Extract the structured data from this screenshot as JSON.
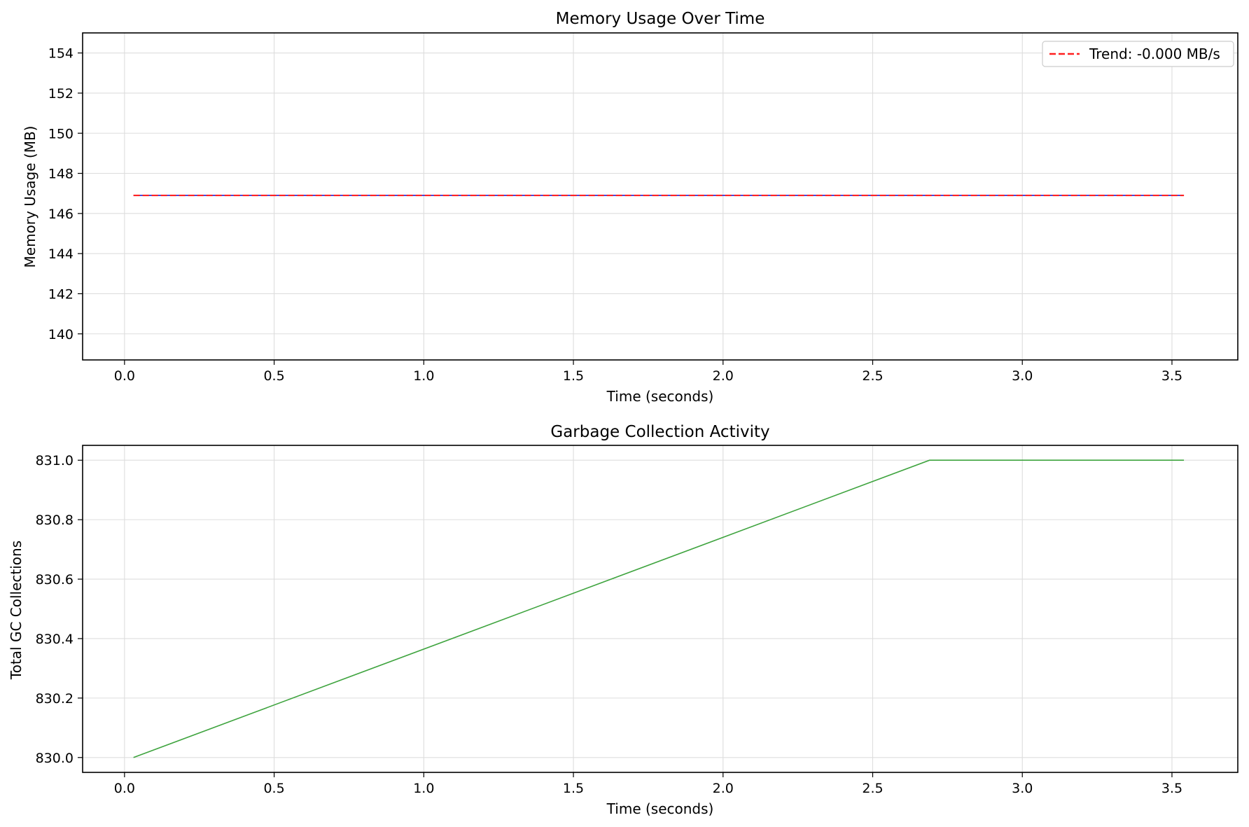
{
  "chart_data": [
    {
      "type": "line",
      "title": "Memory Usage Over Time",
      "xlabel": "Time (seconds)",
      "ylabel": "Memory Usage (MB)",
      "xlim": [
        -0.14,
        3.72
      ],
      "ylim": [
        138.7,
        155.0
      ],
      "xticks": [
        0.0,
        0.5,
        1.0,
        1.5,
        2.0,
        2.5,
        3.0,
        3.5
      ],
      "xtick_labels": [
        "0.0",
        "0.5",
        "1.0",
        "1.5",
        "2.0",
        "2.5",
        "3.0",
        "3.5"
      ],
      "yticks": [
        140,
        142,
        144,
        146,
        148,
        150,
        152,
        154
      ],
      "ytick_labels": [
        "140",
        "142",
        "144",
        "146",
        "148",
        "150",
        "152",
        "154"
      ],
      "grid": true,
      "legend": {
        "placement": "top-right",
        "entries": [
          "Trend: -0.000 MB/s"
        ]
      },
      "series": [
        {
          "name": "",
          "color": "#1f1fd6",
          "style": "solid",
          "x": [
            0.03,
            3.54
          ],
          "y": [
            146.9,
            146.9
          ]
        },
        {
          "name": "Trend: -0.000 MB/s",
          "color": "#ff2020",
          "style": "dashed",
          "x": [
            0.03,
            3.54
          ],
          "y": [
            146.9,
            146.9
          ]
        }
      ]
    },
    {
      "type": "line",
      "title": "Garbage Collection Activity",
      "xlabel": "Time (seconds)",
      "ylabel": "Total GC Collections",
      "xlim": [
        -0.14,
        3.72
      ],
      "ylim": [
        829.95,
        831.05
      ],
      "xticks": [
        0.0,
        0.5,
        1.0,
        1.5,
        2.0,
        2.5,
        3.0,
        3.5
      ],
      "xtick_labels": [
        "0.0",
        "0.5",
        "1.0",
        "1.5",
        "2.0",
        "2.5",
        "3.0",
        "3.5"
      ],
      "yticks": [
        830.0,
        830.2,
        830.4,
        830.6,
        830.8,
        831.0
      ],
      "ytick_labels": [
        "830.0",
        "830.2",
        "830.4",
        "830.6",
        "830.8",
        "831.0"
      ],
      "grid": true,
      "series": [
        {
          "name": "",
          "color": "#3fa43f",
          "style": "solid",
          "x": [
            0.03,
            2.69,
            3.54
          ],
          "y": [
            830.0,
            831.0,
            831.0
          ]
        }
      ]
    }
  ]
}
